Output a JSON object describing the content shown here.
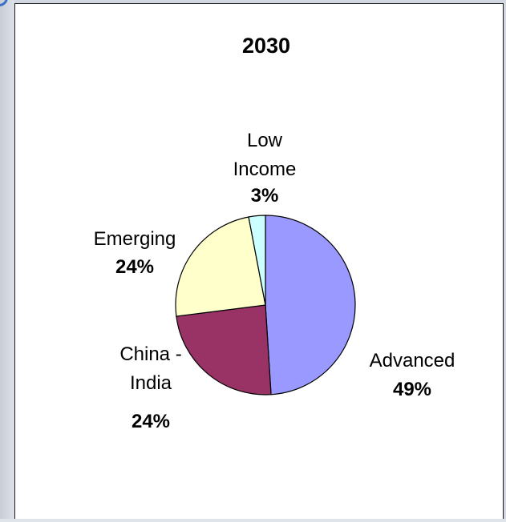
{
  "chart_data": {
    "type": "pie",
    "title": "2030",
    "slices": [
      {
        "key": "advanced",
        "label_lines": [
          "Advanced"
        ],
        "value": 49,
        "value_label": "49%",
        "color": "#9999ff"
      },
      {
        "key": "china-india",
        "label_lines": [
          "China -",
          "India"
        ],
        "value": 24,
        "value_label": "24%",
        "color": "#993366"
      },
      {
        "key": "emerging",
        "label_lines": [
          "Emerging"
        ],
        "value": 24,
        "value_label": "24%",
        "color": "#ffffcc"
      },
      {
        "key": "low-income",
        "label_lines": [
          "Low",
          "Income"
        ],
        "value": 3,
        "value_label": "3%",
        "color": "#ccffff"
      }
    ],
    "start_direction": "12 o'clock",
    "direction": "clockwise",
    "legend": "none",
    "outline_color": "#000000"
  }
}
